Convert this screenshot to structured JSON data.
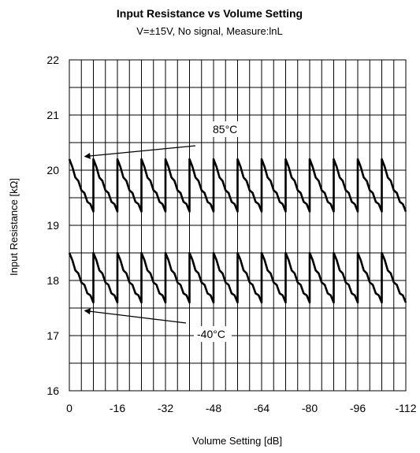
{
  "chart_data": {
    "type": "line",
    "title": "Input Resistance vs Volume Setting",
    "subtitle": "V=±15V, No signal,  Measure:lnL",
    "xlabel": "Volume Setting [dB]",
    "ylabel": "Input Resistance [kΩ]",
    "xlim": [
      0,
      -112
    ],
    "ylim": [
      16,
      22
    ],
    "x_ticks": [
      0,
      -16,
      -32,
      -48,
      -64,
      -80,
      -96,
      -112
    ],
    "x_tick_labels": [
      "0",
      "-16",
      "-32",
      "-48",
      "-64",
      "-80",
      "-96",
      "-112"
    ],
    "y_ticks": [
      16,
      17,
      18,
      19,
      20,
      21,
      22
    ],
    "y_tick_labels": [
      "16",
      "17",
      "18",
      "19",
      "20",
      "21",
      "22"
    ],
    "grid": true,
    "series": [
      {
        "name": "85°C",
        "color": "#000000",
        "pattern": "sawtooth",
        "period_db": 8,
        "start_db": 0,
        "end_db": -112,
        "value_at_step_start": 20.2,
        "value_at_step_end": 19.25
      },
      {
        "name": "-40°C",
        "color": "#000000",
        "pattern": "sawtooth",
        "period_db": 8,
        "start_db": 0,
        "end_db": -112,
        "value_at_step_start": 18.5,
        "value_at_step_end": 17.6
      }
    ],
    "annotations": [
      {
        "text": "85°C",
        "arrow_to_x": -5.4,
        "arrow_to_y": 20.25
      },
      {
        "text": "-40°C",
        "arrow_to_x": -5.4,
        "arrow_to_y": 17.45
      }
    ]
  }
}
